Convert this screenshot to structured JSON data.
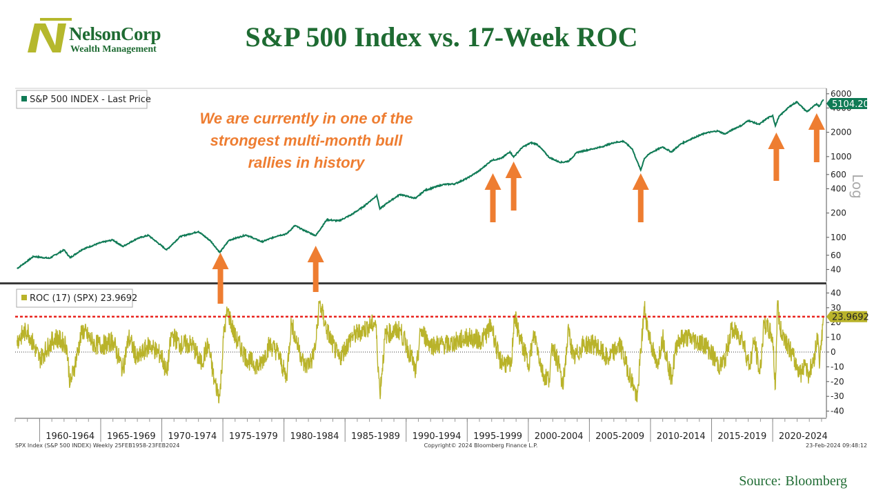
{
  "header": {
    "logo_name": "NelsonCorp",
    "logo_sub": "Wealth Management",
    "title": "S&P 500 Index vs. 17-Week ROC"
  },
  "footer": {
    "source_label": "Source:",
    "source_value": "Bloomberg",
    "bbg_left": "SPX Index (S&P 500 INDEX)  Weekly 25FEB1958-23FEB2024",
    "bbg_center": "Copyright© 2024 Bloomberg Finance L.P.",
    "bbg_right": "23-Feb-2024 09:48:12"
  },
  "colors": {
    "title": "#1e6b32",
    "spx_line": "#0f7a55",
    "roc_line": "#b9b32a",
    "annotation": "#ee7d31",
    "threshold": "#e8221c",
    "logo_accent": "#b5b82d"
  },
  "annotation": {
    "lines": [
      "We are currently in one of the",
      "strongest multi-month bull",
      "rallies in history"
    ]
  },
  "chart_data": [
    {
      "type": "line",
      "panel": "price",
      "legend": "S&P 500 INDEX - Last Price",
      "scale": "log",
      "scale_label": "Log",
      "ylim": [
        30,
        7000
      ],
      "yticks": [
        40,
        60,
        100,
        200,
        400,
        600,
        1000,
        2000,
        4000,
        6000
      ],
      "last_value_label": "5104.20",
      "last_value": 5104.2,
      "series": [
        {
          "x": [
            1958.15,
            1959.5,
            1960.8,
            1962.0,
            1962.5,
            1963.5,
            1965.0,
            1966.0,
            1966.8,
            1968.0,
            1968.9,
            1970.4,
            1971.5,
            1973.0,
            1974.0,
            1974.75,
            1975.5,
            1976.9,
            1978.2,
            1979.5,
            1980.2,
            1980.9,
            1981.5,
            1982.6,
            1983.5,
            1984.5,
            1985.5,
            1986.5,
            1987.6,
            1987.85,
            1988.5,
            1989.5,
            1990.5,
            1990.8,
            1991.5,
            1993.0,
            1994.0,
            1995.0,
            1996.0,
            1997.0,
            1997.8,
            1998.5,
            1998.8,
            1999.5,
            2000.2,
            2000.7,
            2001.3,
            2001.7,
            2002.5,
            2002.8,
            2003.3,
            2004.0,
            2005.0,
            2006.0,
            2007.0,
            2007.8,
            2008.5,
            2008.9,
            2009.2,
            2009.5,
            2010.0,
            2011.0,
            2011.7,
            2012.5,
            2013.5,
            2014.5,
            2015.5,
            2016.1,
            2016.8,
            2017.5,
            2018.0,
            2018.9,
            2019.5,
            2020.0,
            2020.22,
            2020.5,
            2021.0,
            2021.5,
            2022.0,
            2022.4,
            2022.8,
            2023.2,
            2023.6,
            2023.8,
            2024.15
          ],
          "values": [
            41,
            58,
            55,
            70,
            56,
            71,
            86,
            93,
            77,
            97,
            106,
            70,
            102,
            118,
            90,
            65,
            92,
            107,
            88,
            105,
            110,
            140,
            125,
            105,
            165,
            160,
            190,
            240,
            330,
            225,
            270,
            340,
            310,
            305,
            380,
            450,
            460,
            540,
            670,
            900,
            950,
            1150,
            990,
            1300,
            1480,
            1430,
            1150,
            980,
            860,
            850,
            880,
            1130,
            1220,
            1320,
            1490,
            1550,
            1250,
            880,
            680,
            950,
            1110,
            1320,
            1140,
            1440,
            1700,
            1960,
            2080,
            1900,
            2200,
            2450,
            2800,
            2500,
            2950,
            3230,
            2400,
            3100,
            3700,
            4300,
            4760,
            4100,
            3600,
            4000,
            4500,
            4180,
            5104.2
          ]
        }
      ]
    },
    {
      "type": "line",
      "panel": "roc",
      "legend": "ROC (17) (SPX) 23.9692",
      "ylim": [
        -43,
        43
      ],
      "yticks": [
        -40,
        -30,
        -20,
        -10,
        0,
        10,
        20,
        30,
        40
      ],
      "threshold": 23.9692,
      "last_value_label": "23.9692",
      "last_value": 23.9692,
      "series": [
        {
          "x": [
            1958.15,
            1959.0,
            1960.0,
            1960.8,
            1961.3,
            1962.2,
            1962.5,
            1962.9,
            1963.5,
            1964.5,
            1965.5,
            1966.0,
            1966.8,
            1967.3,
            1968.0,
            1969.0,
            1970.0,
            1970.4,
            1970.8,
            1971.5,
            1972.5,
            1973.2,
            1973.8,
            1974.3,
            1974.75,
            1975.1,
            1975.4,
            1976.0,
            1977.0,
            1978.0,
            1978.8,
            1979.5,
            1980.2,
            1980.6,
            1981.0,
            1981.7,
            1982.3,
            1982.6,
            1982.9,
            1983.5,
            1984.5,
            1985.5,
            1986.5,
            1987.5,
            1987.85,
            1988.3,
            1989.5,
            1990.5,
            1990.8,
            1991.2,
            1992.0,
            1993.5,
            1995.0,
            1996.2,
            1997.0,
            1997.6,
            1998.6,
            1998.85,
            1999.3,
            2000.0,
            2000.5,
            2001.2,
            2001.7,
            2002.0,
            2002.6,
            2002.8,
            2003.3,
            2003.7,
            2004.5,
            2005.5,
            2006.5,
            2007.5,
            2008.0,
            2008.7,
            2008.9,
            2009.2,
            2009.5,
            2009.8,
            2010.5,
            2011.0,
            2011.7,
            2012.2,
            2013.0,
            2014.5,
            2015.7,
            2016.1,
            2016.6,
            2017.5,
            2018.1,
            2018.5,
            2018.95,
            2019.3,
            2020.0,
            2020.22,
            2020.4,
            2020.6,
            2021.0,
            2022.0,
            2022.4,
            2022.6,
            2022.9,
            2023.3,
            2023.7,
            2023.85,
            2024.15
          ],
          "values": [
            8,
            15,
            -5,
            5,
            10,
            5,
            -22,
            -8,
            15,
            5,
            5,
            8,
            -12,
            10,
            -5,
            5,
            -3,
            -15,
            12,
            5,
            5,
            -8,
            5,
            -20,
            -30,
            15,
            28,
            10,
            -5,
            -10,
            5,
            0,
            -18,
            20,
            8,
            -10,
            -5,
            5,
            34,
            15,
            -5,
            10,
            15,
            20,
            -28,
            12,
            15,
            -5,
            -15,
            15,
            5,
            5,
            10,
            8,
            18,
            -5,
            -10,
            25,
            10,
            -8,
            12,
            -15,
            -18,
            5,
            -12,
            -25,
            15,
            -5,
            5,
            5,
            -5,
            5,
            -8,
            -25,
            -34,
            0,
            30,
            15,
            -10,
            10,
            -18,
            8,
            10,
            5,
            -10,
            -5,
            15,
            10,
            -10,
            8,
            -15,
            20,
            10,
            -25,
            35,
            15,
            10,
            -10,
            -15,
            -5,
            -15,
            -8,
            12,
            -8,
            23.9692
          ]
        }
      ]
    },
    {
      "type": "table",
      "panel": "x-axis",
      "categories": [
        "1960-1964",
        "1965-1969",
        "1970-1974",
        "1975-1979",
        "1980-1984",
        "1985-1989",
        "1990-1994",
        "1995-1999",
        "2000-2004",
        "2005-2009",
        "2010-2014",
        "2015-2019",
        "2020-2024"
      ]
    }
  ]
}
